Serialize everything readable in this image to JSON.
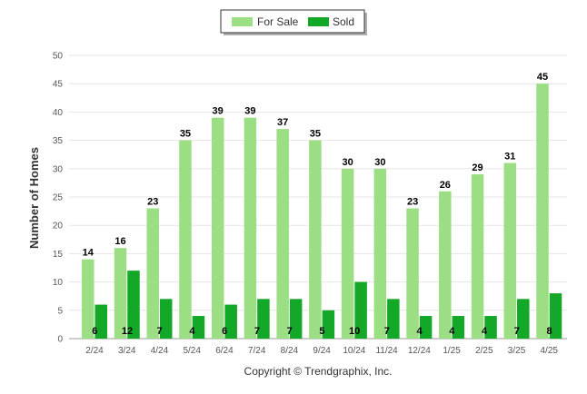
{
  "chart_data": {
    "type": "bar",
    "ylabel": "Number of Homes",
    "ylim": [
      0,
      50
    ],
    "yticks": [
      0,
      5,
      10,
      15,
      20,
      25,
      30,
      35,
      40,
      45,
      50
    ],
    "grid": true,
    "legend_position": "top-center",
    "categories": [
      "2/24",
      "3/24",
      "4/24",
      "5/24",
      "6/24",
      "7/24",
      "8/24",
      "9/24",
      "10/24",
      "11/24",
      "12/24",
      "1/25",
      "2/25",
      "3/25",
      "4/25"
    ],
    "series": [
      {
        "name": "For Sale",
        "color": "#9bde83",
        "values": [
          14,
          16,
          23,
          35,
          39,
          39,
          37,
          35,
          30,
          30,
          23,
          26,
          29,
          31,
          45
        ]
      },
      {
        "name": "Sold",
        "color": "#14a828",
        "values": [
          6,
          12,
          7,
          4,
          6,
          7,
          7,
          5,
          10,
          7,
          4,
          4,
          4,
          7,
          8
        ]
      }
    ]
  },
  "footer": {
    "credit": "Copyright © Trendgraphix, Inc."
  }
}
